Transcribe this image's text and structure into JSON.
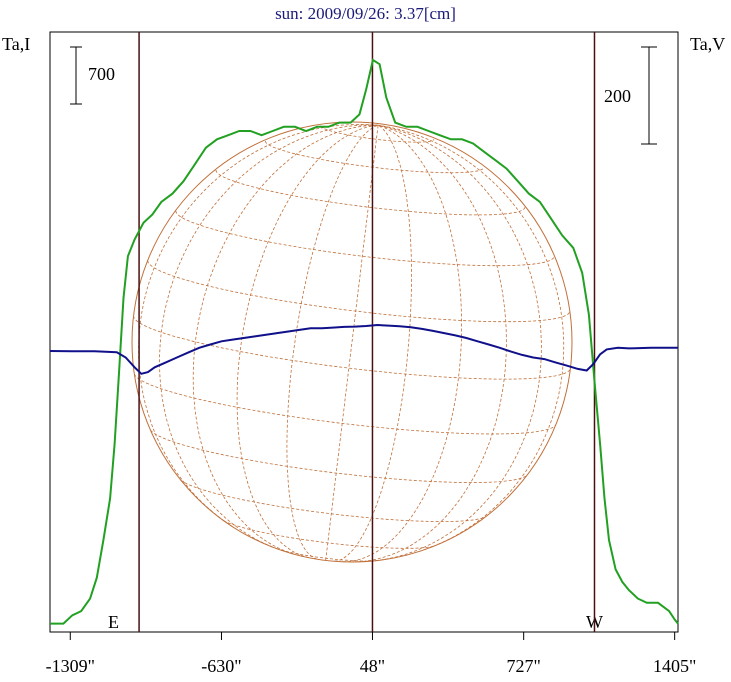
{
  "title": "sun: 2009/09/26: 3.37[cm]",
  "left_axis_label": "Ta,I",
  "right_axis_label": "Ta,V",
  "left_scale_bar": "700",
  "right_scale_bar": "200",
  "east_label": "E",
  "west_label": "W",
  "colors": {
    "intensity": "#22a022",
    "polarization": "#10108a",
    "grid": "#c0703a",
    "frame": "#000000",
    "limb_lines": "#4a1010"
  },
  "chart_data": {
    "type": "line",
    "title": "sun: 2009/09/26: 3.37[cm]",
    "x_unit": "arcsec",
    "xlim": [
      -1400,
      1420
    ],
    "x_ticks": [
      {
        "value": -1309,
        "label": "-1309\""
      },
      {
        "value": -630,
        "label": "-630\""
      },
      {
        "value": 48,
        "label": "48\""
      },
      {
        "value": 727,
        "label": "727\""
      },
      {
        "value": 1405,
        "label": "1405\""
      }
    ],
    "limb_markers": [
      -1000,
      48,
      1045
    ],
    "series": [
      {
        "name": "Ta,I",
        "color": "#22a022",
        "points": [
          [
            -1400,
            0.02
          ],
          [
            -1340,
            0.02
          ],
          [
            -1300,
            0.04
          ],
          [
            -1260,
            0.05
          ],
          [
            -1220,
            0.08
          ],
          [
            -1190,
            0.13
          ],
          [
            -1160,
            0.22
          ],
          [
            -1130,
            0.32
          ],
          [
            -1110,
            0.45
          ],
          [
            -1090,
            0.62
          ],
          [
            -1070,
            0.8
          ],
          [
            -1050,
            0.9
          ],
          [
            -1020,
            0.94
          ],
          [
            -980,
            0.98
          ],
          [
            -940,
            1.0
          ],
          [
            -900,
            1.03
          ],
          [
            -850,
            1.05
          ],
          [
            -800,
            1.08
          ],
          [
            -750,
            1.12
          ],
          [
            -700,
            1.16
          ],
          [
            -650,
            1.18
          ],
          [
            -600,
            1.19
          ],
          [
            -550,
            1.2
          ],
          [
            -500,
            1.2
          ],
          [
            -450,
            1.19
          ],
          [
            -400,
            1.2
          ],
          [
            -350,
            1.21
          ],
          [
            -300,
            1.21
          ],
          [
            -250,
            1.2
          ],
          [
            -200,
            1.21
          ],
          [
            -150,
            1.21
          ],
          [
            -100,
            1.22
          ],
          [
            -50,
            1.22
          ],
          [
            -10,
            1.24
          ],
          [
            20,
            1.3
          ],
          [
            50,
            1.37
          ],
          [
            80,
            1.36
          ],
          [
            110,
            1.28
          ],
          [
            150,
            1.22
          ],
          [
            200,
            1.21
          ],
          [
            250,
            1.21
          ],
          [
            300,
            1.2
          ],
          [
            350,
            1.19
          ],
          [
            400,
            1.18
          ],
          [
            450,
            1.18
          ],
          [
            500,
            1.17
          ],
          [
            550,
            1.15
          ],
          [
            600,
            1.13
          ],
          [
            650,
            1.11
          ],
          [
            700,
            1.08
          ],
          [
            750,
            1.05
          ],
          [
            800,
            1.03
          ],
          [
            850,
            0.99
          ],
          [
            900,
            0.95
          ],
          [
            950,
            0.92
          ],
          [
            990,
            0.86
          ],
          [
            1020,
            0.76
          ],
          [
            1045,
            0.6
          ],
          [
            1070,
            0.45
          ],
          [
            1090,
            0.32
          ],
          [
            1110,
            0.22
          ],
          [
            1140,
            0.15
          ],
          [
            1170,
            0.12
          ],
          [
            1200,
            0.1
          ],
          [
            1240,
            0.08
          ],
          [
            1280,
            0.07
          ],
          [
            1330,
            0.07
          ],
          [
            1380,
            0.05
          ],
          [
            1405,
            0.03
          ],
          [
            1420,
            0.02
          ]
        ]
      },
      {
        "name": "Ta,V",
        "color": "#10108a",
        "points": [
          [
            -1400,
            0
          ],
          [
            -1300,
            -0.001
          ],
          [
            -1200,
            -0.001
          ],
          [
            -1100,
            -0.004
          ],
          [
            -1060,
            -0.02
          ],
          [
            -1020,
            -0.05
          ],
          [
            -990,
            -0.07
          ],
          [
            -960,
            -0.065
          ],
          [
            -930,
            -0.05
          ],
          [
            -880,
            -0.035
          ],
          [
            -830,
            -0.02
          ],
          [
            -780,
            -0.005
          ],
          [
            -730,
            0.01
          ],
          [
            -680,
            0.02
          ],
          [
            -630,
            0.03
          ],
          [
            -580,
            0.035
          ],
          [
            -530,
            0.04
          ],
          [
            -480,
            0.045
          ],
          [
            -430,
            0.05
          ],
          [
            -380,
            0.055
          ],
          [
            -330,
            0.06
          ],
          [
            -280,
            0.065
          ],
          [
            -230,
            0.07
          ],
          [
            -180,
            0.07
          ],
          [
            -130,
            0.072
          ],
          [
            -80,
            0.074
          ],
          [
            -30,
            0.075
          ],
          [
            20,
            0.077
          ],
          [
            70,
            0.08
          ],
          [
            120,
            0.078
          ],
          [
            170,
            0.076
          ],
          [
            220,
            0.073
          ],
          [
            270,
            0.068
          ],
          [
            320,
            0.062
          ],
          [
            370,
            0.055
          ],
          [
            420,
            0.048
          ],
          [
            470,
            0.04
          ],
          [
            520,
            0.03
          ],
          [
            570,
            0.02
          ],
          [
            620,
            0.01
          ],
          [
            670,
            -0.002
          ],
          [
            720,
            -0.012
          ],
          [
            770,
            -0.02
          ],
          [
            820,
            -0.025
          ],
          [
            870,
            -0.035
          ],
          [
            920,
            -0.045
          ],
          [
            970,
            -0.055
          ],
          [
            1010,
            -0.06
          ],
          [
            1040,
            -0.04
          ],
          [
            1070,
            -0.01
          ],
          [
            1100,
            0.005
          ],
          [
            1150,
            0.01
          ],
          [
            1200,
            0.008
          ],
          [
            1300,
            0.01
          ],
          [
            1420,
            0.01
          ]
        ]
      }
    ],
    "grid": true
  }
}
